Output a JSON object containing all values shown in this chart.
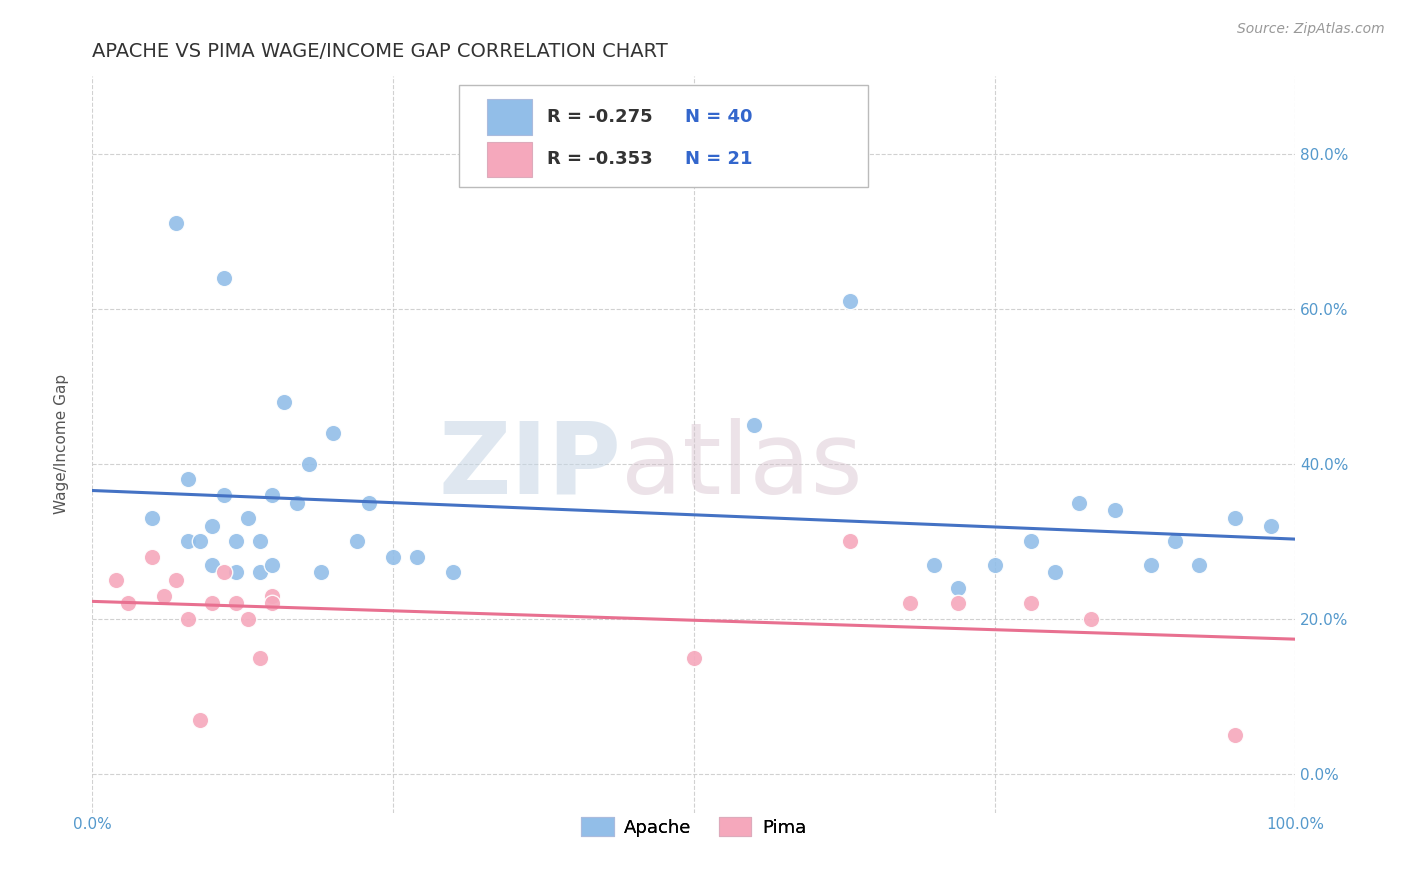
{
  "title": "APACHE VS PIMA WAGE/INCOME GAP CORRELATION CHART",
  "source": "Source: ZipAtlas.com",
  "ylabel": "Wage/Income Gap",
  "xlim": [
    0,
    100
  ],
  "ylim": [
    -5,
    90
  ],
  "x_ticks": [
    0,
    25,
    50,
    75,
    100
  ],
  "x_tick_labels": [
    "0.0%",
    "",
    "",
    "",
    "100.0%"
  ],
  "y_ticks": [
    0,
    20,
    40,
    60,
    80
  ],
  "y_tick_labels": [
    "0.0%",
    "20.0%",
    "40.0%",
    "60.0%",
    "80.0%"
  ],
  "apache_R": "-0.275",
  "apache_N": "40",
  "pima_R": "-0.353",
  "pima_N": "21",
  "apache_color": "#92BEE8",
  "pima_color": "#F5A8BC",
  "apache_line_color": "#4472C4",
  "pima_line_color": "#E87090",
  "apache_x": [
    5,
    7,
    8,
    8,
    9,
    10,
    10,
    11,
    11,
    12,
    12,
    13,
    14,
    14,
    15,
    15,
    16,
    17,
    18,
    19,
    20,
    22,
    23,
    25,
    27,
    30,
    55,
    63,
    70,
    72,
    75,
    78,
    80,
    82,
    85,
    88,
    90,
    92,
    95,
    98
  ],
  "apache_y": [
    33,
    71,
    38,
    30,
    30,
    32,
    27,
    64,
    36,
    30,
    26,
    33,
    30,
    26,
    36,
    27,
    48,
    35,
    40,
    26,
    44,
    30,
    35,
    28,
    28,
    26,
    45,
    61,
    27,
    24,
    27,
    30,
    26,
    35,
    34,
    27,
    30,
    27,
    33,
    32
  ],
  "pima_x": [
    2,
    3,
    5,
    6,
    7,
    8,
    9,
    10,
    11,
    12,
    13,
    14,
    15,
    15,
    50,
    63,
    68,
    72,
    78,
    83,
    95
  ],
  "pima_y": [
    25,
    22,
    28,
    23,
    25,
    20,
    7,
    22,
    26,
    22,
    20,
    15,
    23,
    22,
    15,
    30,
    22,
    22,
    22,
    20,
    5
  ],
  "background_color": "#ffffff",
  "grid_color": "#cccccc",
  "watermark_zip": "ZIP",
  "watermark_atlas": "atlas",
  "title_fontsize": 14,
  "axis_label_fontsize": 11,
  "tick_fontsize": 11,
  "legend_fontsize": 13
}
